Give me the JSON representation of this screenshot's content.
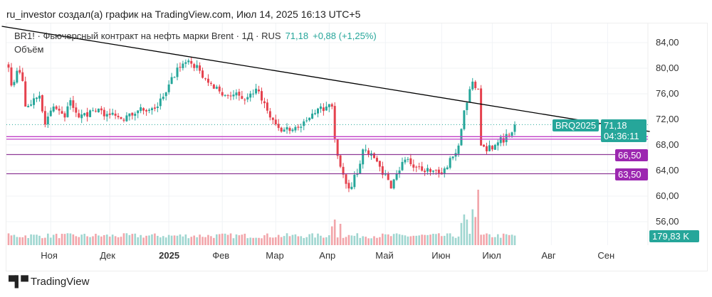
{
  "header": {
    "caption": "ru_investor создал(а) график на TradingView.com, Июл 14, 2025 16:13 UTC+5"
  },
  "legend": {
    "symbol": "BR1! · Фьючерсный контракт на нефть марки Brent · 1Д · RUS",
    "last": "71,18",
    "change": "+0,88 (+1,25%)",
    "volume_label": "Объём"
  },
  "badges": {
    "ticker": "BRQ2025",
    "price": "71,18",
    "countdown": "04:36:11",
    "level1": "66,50",
    "level2": "63,50",
    "volume": "179,83 K"
  },
  "footer": {
    "brand": "TradingView",
    "logo": "TV"
  },
  "colors": {
    "up": "#26a69a",
    "down": "#e5424e",
    "level": "#9c27b0",
    "trend": "#000000"
  },
  "chart_data": {
    "type": "candlestick",
    "yticks": [
      "84,00",
      "80,00",
      "76,00",
      "72,00",
      "68,00",
      "64,00",
      "60,00",
      "56,00"
    ],
    "ytick_values": [
      84,
      80,
      76,
      72,
      68,
      64,
      60,
      56
    ],
    "xticks": [
      {
        "label": "Ноя",
        "bar": 15
      },
      {
        "label": "Дек",
        "bar": 36
      },
      {
        "label": "2025",
        "bar": 57,
        "bold": true
      },
      {
        "label": "Фев",
        "bar": 76
      },
      {
        "label": "Мар",
        "bar": 95
      },
      {
        "label": "Апр",
        "bar": 114
      },
      {
        "label": "Май",
        "bar": 134
      },
      {
        "label": "Июн",
        "bar": 154
      },
      {
        "label": "Июл",
        "bar": 172
      },
      {
        "label": "Авг",
        "bar": 193
      },
      {
        "label": "Сен",
        "bar": 213
      }
    ],
    "bars": 181,
    "close_anchors": [
      [
        0,
        80.1
      ],
      [
        1,
        77.3
      ],
      [
        3,
        79.6
      ],
      [
        5,
        78
      ],
      [
        6,
        74
      ],
      [
        11,
        75.7
      ],
      [
        13,
        71.2
      ],
      [
        16,
        74
      ],
      [
        20,
        72.3
      ],
      [
        22,
        75
      ],
      [
        25,
        72.3
      ],
      [
        30,
        73.4
      ],
      [
        36,
        72.7
      ],
      [
        41,
        71.8
      ],
      [
        46,
        73.4
      ],
      [
        53,
        74
      ],
      [
        56,
        76.2
      ],
      [
        60,
        80.1
      ],
      [
        64,
        81.2
      ],
      [
        68,
        79.6
      ],
      [
        73,
        76.8
      ],
      [
        78,
        75.7
      ],
      [
        81,
        76.2
      ],
      [
        84,
        75
      ],
      [
        88,
        76.8
      ],
      [
        93,
        72.3
      ],
      [
        97,
        70.1
      ],
      [
        101,
        70.4
      ],
      [
        103,
        70.7
      ],
      [
        108,
        72.9
      ],
      [
        113,
        74
      ],
      [
        115,
        74
      ],
      [
        116,
        69
      ],
      [
        118,
        64.6
      ],
      [
        121,
        61.2
      ],
      [
        124,
        63.5
      ],
      [
        126,
        67.3
      ],
      [
        129,
        66.7
      ],
      [
        132,
        64.6
      ],
      [
        136,
        61.2
      ],
      [
        139,
        64
      ],
      [
        141,
        65.7
      ],
      [
        146,
        64.6
      ],
      [
        151,
        64
      ],
      [
        154,
        63.4
      ],
      [
        158,
        66.2
      ],
      [
        160,
        67.9
      ],
      [
        162,
        73.4
      ],
      [
        163,
        74.6
      ],
      [
        165,
        77.9
      ],
      [
        167,
        76.8
      ],
      [
        168,
        67.9
      ],
      [
        172,
        67.3
      ],
      [
        174,
        68.4
      ],
      [
        178,
        69.5
      ],
      [
        180,
        71.18
      ]
    ],
    "volume_spikes": [
      [
        115,
        2.2
      ],
      [
        116,
        3
      ],
      [
        118,
        2.5
      ],
      [
        161,
        2.6
      ],
      [
        162,
        3.6
      ],
      [
        163,
        3
      ],
      [
        165,
        4.2
      ],
      [
        166,
        3.3
      ],
      [
        167,
        6.5
      ]
    ],
    "trendline": [
      [
        -10,
        87.1
      ],
      [
        228,
        70.1
      ]
    ],
    "levels": [
      69.3,
      68.9,
      66.5,
      63.5
    ],
    "last_price": 71.18
  }
}
